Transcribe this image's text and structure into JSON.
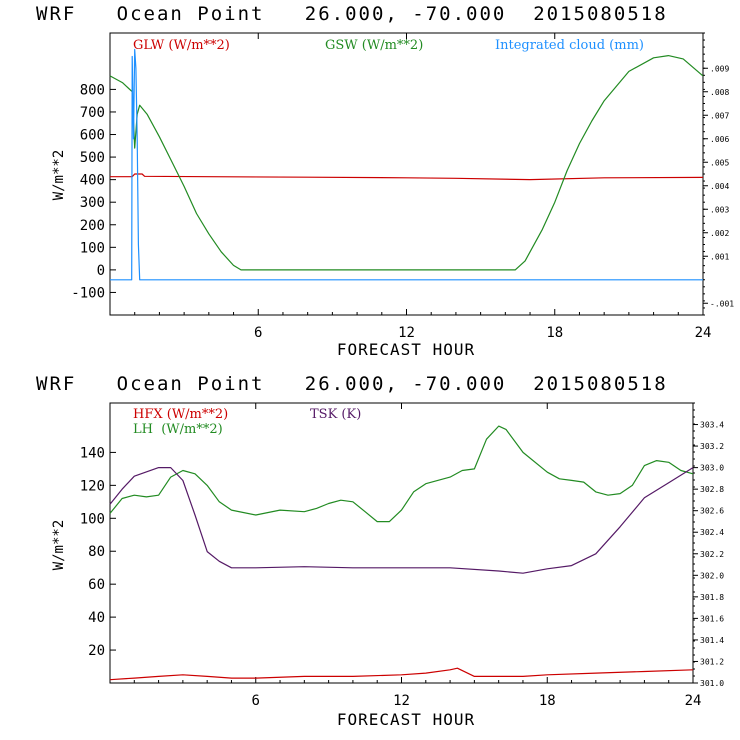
{
  "chart_data": [
    {
      "type": "line",
      "title": "WRF   Ocean Point   26.000, -70.000  2015080518",
      "xlabel": "FORECAST HOUR",
      "ylabel": "W/m**2",
      "xlim": [
        0,
        24
      ],
      "ylim": [
        -200,
        1050
      ],
      "x_ticks": [
        "6",
        "12",
        "18",
        "24"
      ],
      "x_tick_values": [
        6,
        12,
        18,
        24
      ],
      "y_ticks": [
        "-100",
        "0",
        "100",
        "200",
        "300",
        "400",
        "500",
        "600",
        "700",
        "800"
      ],
      "y_tick_values": [
        -100,
        0,
        100,
        200,
        300,
        400,
        500,
        600,
        700,
        800
      ],
      "right_ylim": [
        -0.0015,
        0.0105
      ],
      "right_ticks": [
        "-.001",
        ".001",
        ".002",
        ".003",
        ".004",
        ".005",
        ".006",
        ".007",
        ".008",
        ".009"
      ],
      "right_tick_values": [
        -0.001,
        0.001,
        0.002,
        0.003,
        0.004,
        0.005,
        0.006,
        0.007,
        0.008,
        0.009
      ],
      "series": [
        {
          "name": "GLW (W/m**2)",
          "color": "#cc0000",
          "axis": "left",
          "points": [
            [
              0,
              413
            ],
            [
              0.9,
              413
            ],
            [
              1,
              425
            ],
            [
              1.3,
              425
            ],
            [
              1.4,
              415
            ],
            [
              4,
              413
            ],
            [
              8,
              411
            ],
            [
              12,
              408
            ],
            [
              14,
              406
            ],
            [
              17,
              400
            ],
            [
              20,
              408
            ],
            [
              24,
              410
            ]
          ]
        },
        {
          "name": "GSW (W/m**2)",
          "color": "#228b22",
          "axis": "left",
          "points": [
            [
              0,
              860
            ],
            [
              0.5,
              830
            ],
            [
              0.9,
              790
            ],
            [
              1.0,
              540
            ],
            [
              1.1,
              690
            ],
            [
              1.2,
              730
            ],
            [
              1.5,
              690
            ],
            [
              2,
              590
            ],
            [
              2.5,
              480
            ],
            [
              3,
              370
            ],
            [
              3.5,
              250
            ],
            [
              4,
              160
            ],
            [
              4.5,
              80
            ],
            [
              5,
              20
            ],
            [
              5.3,
              0
            ],
            [
              16.4,
              0
            ],
            [
              16.8,
              40
            ],
            [
              17.5,
              180
            ],
            [
              18,
              300
            ],
            [
              18.5,
              440
            ],
            [
              19,
              560
            ],
            [
              19.5,
              660
            ],
            [
              20,
              750
            ],
            [
              21,
              880
            ],
            [
              22,
              940
            ],
            [
              22.6,
              950
            ],
            [
              23.2,
              935
            ],
            [
              24,
              860
            ]
          ]
        },
        {
          "name": "Integrated cloud (mm)",
          "color": "#1e90ff",
          "axis": "right",
          "points": [
            [
              0,
              0
            ],
            [
              0.88,
              0
            ],
            [
              0.9,
              0.0095
            ],
            [
              0.95,
              0.006
            ],
            [
              1.0,
              0.0098
            ],
            [
              1.05,
              0.009
            ],
            [
              1.1,
              0.006
            ],
            [
              1.15,
              0.0015
            ],
            [
              1.2,
              0
            ],
            [
              24,
              0
            ]
          ]
        }
      ]
    },
    {
      "type": "line",
      "title": "WRF   Ocean Point   26.000, -70.000  2015080518",
      "xlabel": "FORECAST HOUR",
      "ylabel": "W/m**2",
      "xlim": [
        0,
        24
      ],
      "ylim": [
        0,
        170
      ],
      "x_ticks": [
        "6",
        "12",
        "18",
        "24"
      ],
      "x_tick_values": [
        6,
        12,
        18,
        24
      ],
      "y_ticks": [
        "20",
        "40",
        "60",
        "80",
        "100",
        "120",
        "140"
      ],
      "y_tick_values": [
        20,
        40,
        60,
        80,
        100,
        120,
        140
      ],
      "right_ylim": [
        301.0,
        303.6
      ],
      "right_ticks": [
        "301.0",
        "301.2",
        "301.4",
        "301.6",
        "301.8",
        "302.0",
        "302.2",
        "302.4",
        "302.6",
        "302.8",
        "303.0",
        "303.2",
        "303.4"
      ],
      "right_tick_values": [
        301.0,
        301.2,
        301.4,
        301.6,
        301.8,
        302.0,
        302.2,
        302.4,
        302.6,
        302.8,
        303.0,
        303.2,
        303.4
      ],
      "series": [
        {
          "name": "HFX (W/m**2)",
          "color": "#cc0000",
          "axis": "left",
          "points": [
            [
              0,
              2
            ],
            [
              1,
              3
            ],
            [
              2,
              4
            ],
            [
              3,
              5
            ],
            [
              4,
              4
            ],
            [
              5,
              3
            ],
            [
              6,
              3
            ],
            [
              8,
              4
            ],
            [
              10,
              4
            ],
            [
              12,
              5
            ],
            [
              13,
              6
            ],
            [
              14,
              8
            ],
            [
              14.3,
              9
            ],
            [
              15,
              4
            ],
            [
              16,
              4
            ],
            [
              17,
              4
            ],
            [
              18,
              5
            ],
            [
              20,
              6
            ],
            [
              22,
              7
            ],
            [
              24,
              8
            ]
          ]
        },
        {
          "name": "LH  (W/m**2)",
          "color": "#228b22",
          "axis": "left",
          "points": [
            [
              0,
              103
            ],
            [
              0.5,
              112
            ],
            [
              1,
              114
            ],
            [
              1.5,
              113
            ],
            [
              2,
              114
            ],
            [
              2.5,
              125
            ],
            [
              3,
              129
            ],
            [
              3.5,
              127
            ],
            [
              4,
              120
            ],
            [
              4.5,
              110
            ],
            [
              5,
              105
            ],
            [
              6,
              102
            ],
            [
              7,
              105
            ],
            [
              8,
              104
            ],
            [
              8.5,
              106
            ],
            [
              9,
              109
            ],
            [
              9.5,
              111
            ],
            [
              10,
              110
            ],
            [
              10.5,
              104
            ],
            [
              11,
              98
            ],
            [
              11.5,
              98
            ],
            [
              12,
              105
            ],
            [
              12.5,
              116
            ],
            [
              13,
              121
            ],
            [
              14,
              125
            ],
            [
              14.5,
              129
            ],
            [
              15,
              130
            ],
            [
              15.5,
              148
            ],
            [
              16,
              156
            ],
            [
              16.3,
              154
            ],
            [
              17,
              140
            ],
            [
              18,
              128
            ],
            [
              18.5,
              124
            ],
            [
              19,
              123
            ],
            [
              19.5,
              122
            ],
            [
              20,
              116
            ],
            [
              20.5,
              114
            ],
            [
              21,
              115
            ],
            [
              21.5,
              120
            ],
            [
              22,
              132
            ],
            [
              22.5,
              135
            ],
            [
              23,
              134
            ],
            [
              23.5,
              129
            ],
            [
              24,
              127
            ]
          ]
        },
        {
          "name": "TSK (K)",
          "color": "#551a66",
          "axis": "right",
          "points": [
            [
              0,
              302.66
            ],
            [
              0.5,
              302.8
            ],
            [
              1,
              302.92
            ],
            [
              2,
              303.0
            ],
            [
              2.5,
              303.0
            ],
            [
              3,
              302.88
            ],
            [
              3.5,
              302.56
            ],
            [
              4,
              302.22
            ],
            [
              4.5,
              302.13
            ],
            [
              5,
              302.07
            ],
            [
              6,
              302.07
            ],
            [
              8,
              302.08
            ],
            [
              10,
              302.07
            ],
            [
              14,
              302.07
            ],
            [
              16,
              302.04
            ],
            [
              17,
              302.02
            ],
            [
              18,
              302.06
            ],
            [
              19,
              302.09
            ],
            [
              20,
              302.2
            ],
            [
              21,
              302.45
            ],
            [
              22,
              302.72
            ],
            [
              23,
              302.86
            ],
            [
              24,
              303.0
            ]
          ]
        }
      ]
    }
  ]
}
